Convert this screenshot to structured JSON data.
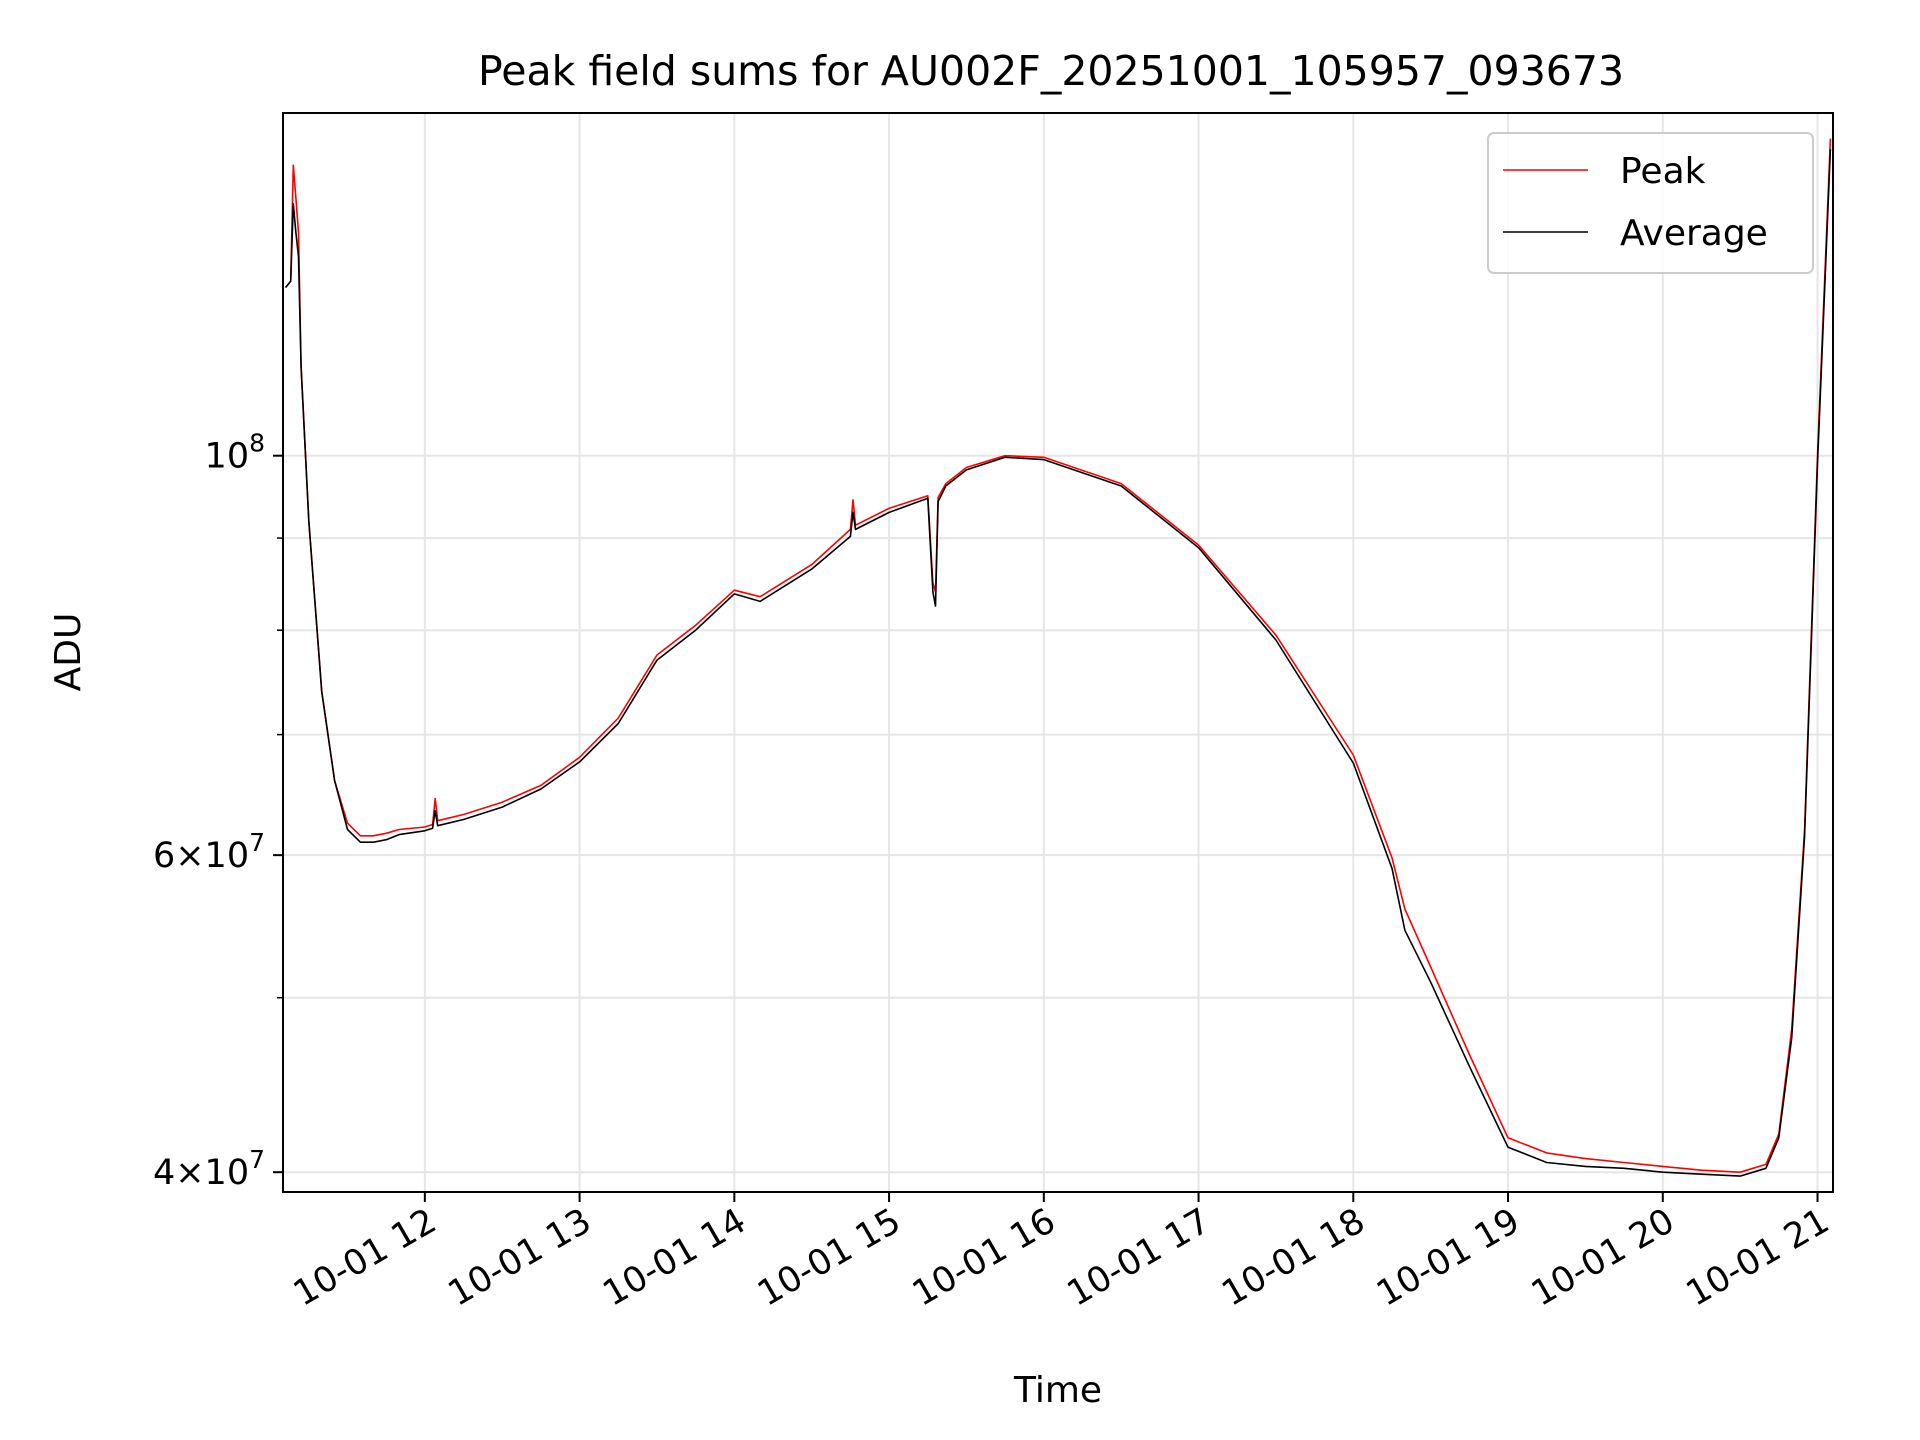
{
  "chart_data": {
    "type": "line",
    "title": "Peak field sums for AU002F_20251001_105957_093673",
    "xlabel": "Time",
    "ylabel": "ADU",
    "y_scale": "log",
    "xlim": [
      "2025-10-01T11:05",
      "2025-10-01T21:06"
    ],
    "ylim": [
      39000000,
      155000000
    ],
    "grid": true,
    "legend_position": "top-right",
    "x_ticks": [
      "10-01 12",
      "10-01 13",
      "10-01 14",
      "10-01 15",
      "10-01 16",
      "10-01 17",
      "10-01 18",
      "10-01 19",
      "10-01 20",
      "10-01 21"
    ],
    "x_tick_times": [
      "2025-10-01T12:00",
      "2025-10-01T13:00",
      "2025-10-01T14:00",
      "2025-10-01T15:00",
      "2025-10-01T16:00",
      "2025-10-01T17:00",
      "2025-10-01T18:00",
      "2025-10-01T19:00",
      "2025-10-01T20:00",
      "2025-10-01T21:00"
    ],
    "y_ticks": [
      {
        "value": 100000000,
        "base": "10",
        "exp": "8"
      },
      {
        "value": 60000000,
        "base": "6×10",
        "exp": "7"
      },
      {
        "value": 40000000,
        "base": "4×10",
        "exp": "7"
      }
    ],
    "y_minor_gridlines": [
      50000000,
      70000000,
      80000000,
      90000000
    ],
    "series": [
      {
        "name": "Peak",
        "color": "#ff0000",
        "x": [
          "2025-10-01T11:06",
          "2025-10-01T11:08",
          "2025-10-01T11:09",
          "2025-10-01T11:10",
          "2025-10-01T11:11",
          "2025-10-01T11:12",
          "2025-10-01T11:15",
          "2025-10-01T11:20",
          "2025-10-01T11:25",
          "2025-10-01T11:30",
          "2025-10-01T11:35",
          "2025-10-01T11:40",
          "2025-10-01T11:45",
          "2025-10-01T11:50",
          "2025-10-01T12:00",
          "2025-10-01T12:03",
          "2025-10-01T12:04",
          "2025-10-01T12:05",
          "2025-10-01T12:15",
          "2025-10-01T12:30",
          "2025-10-01T12:45",
          "2025-10-01T13:00",
          "2025-10-01T13:15",
          "2025-10-01T13:30",
          "2025-10-01T13:45",
          "2025-10-01T14:00",
          "2025-10-01T14:10",
          "2025-10-01T14:30",
          "2025-10-01T14:45",
          "2025-10-01T14:46",
          "2025-10-01T14:47",
          "2025-10-01T15:00",
          "2025-10-01T15:15",
          "2025-10-01T15:17",
          "2025-10-01T15:18",
          "2025-10-01T15:19",
          "2025-10-01T15:22",
          "2025-10-01T15:30",
          "2025-10-01T15:45",
          "2025-10-01T16:00",
          "2025-10-01T16:30",
          "2025-10-01T17:00",
          "2025-10-01T17:30",
          "2025-10-01T18:00",
          "2025-10-01T18:15",
          "2025-10-01T18:20",
          "2025-10-01T18:30",
          "2025-10-01T18:45",
          "2025-10-01T19:00",
          "2025-10-01T19:15",
          "2025-10-01T19:30",
          "2025-10-01T19:45",
          "2025-10-01T20:00",
          "2025-10-01T20:15",
          "2025-10-01T20:30",
          "2025-10-01T20:40",
          "2025-10-01T20:45",
          "2025-10-01T20:50",
          "2025-10-01T20:55",
          "2025-10-01T21:00",
          "2025-10-01T21:05"
        ],
        "y": [
          124000000,
          125000000,
          145000000,
          139000000,
          133000000,
          112000000,
          92000000,
          74000000,
          66000000,
          62500000,
          61500000,
          61500000,
          61700000,
          62000000,
          62200000,
          62400000,
          64500000,
          62700000,
          63200000,
          64200000,
          65600000,
          68000000,
          71500000,
          77500000,
          80500000,
          84200000,
          83500000,
          87000000,
          91000000,
          94500000,
          91500000,
          93500000,
          95000000,
          85000000,
          84000000,
          94800000,
          96500000,
          98500000,
          100000000,
          99800000,
          96500000,
          89200000,
          79500000,
          68200000,
          59800000,
          56000000,
          52000000,
          46500000,
          41800000,
          41000000,
          40700000,
          40500000,
          40300000,
          40100000,
          40000000,
          40400000,
          42000000,
          48000000,
          62000000,
          100000000,
          150000000
        ]
      },
      {
        "name": "Average",
        "color": "#000000",
        "x": [
          "2025-10-01T11:06",
          "2025-10-01T11:08",
          "2025-10-01T11:09",
          "2025-10-01T11:10",
          "2025-10-01T11:11",
          "2025-10-01T11:12",
          "2025-10-01T11:15",
          "2025-10-01T11:20",
          "2025-10-01T11:25",
          "2025-10-01T11:30",
          "2025-10-01T11:35",
          "2025-10-01T11:40",
          "2025-10-01T11:45",
          "2025-10-01T11:50",
          "2025-10-01T12:00",
          "2025-10-01T12:03",
          "2025-10-01T12:04",
          "2025-10-01T12:05",
          "2025-10-01T12:15",
          "2025-10-01T12:30",
          "2025-10-01T12:45",
          "2025-10-01T13:00",
          "2025-10-01T13:15",
          "2025-10-01T13:30",
          "2025-10-01T13:45",
          "2025-10-01T14:00",
          "2025-10-01T14:10",
          "2025-10-01T14:30",
          "2025-10-01T14:45",
          "2025-10-01T14:46",
          "2025-10-01T14:47",
          "2025-10-01T15:00",
          "2025-10-01T15:15",
          "2025-10-01T15:17",
          "2025-10-01T15:18",
          "2025-10-01T15:19",
          "2025-10-01T15:22",
          "2025-10-01T15:30",
          "2025-10-01T15:45",
          "2025-10-01T16:00",
          "2025-10-01T16:30",
          "2025-10-01T17:00",
          "2025-10-01T17:30",
          "2025-10-01T18:00",
          "2025-10-01T18:15",
          "2025-10-01T18:20",
          "2025-10-01T18:30",
          "2025-10-01T18:45",
          "2025-10-01T19:00",
          "2025-10-01T19:15",
          "2025-10-01T19:30",
          "2025-10-01T19:45",
          "2025-10-01T20:00",
          "2025-10-01T20:15",
          "2025-10-01T20:30",
          "2025-10-01T20:40",
          "2025-10-01T20:45",
          "2025-10-01T20:50",
          "2025-10-01T20:55",
          "2025-10-01T21:00",
          "2025-10-01T21:05"
        ],
        "y": [
          124000000,
          125000000,
          138000000,
          133000000,
          129000000,
          112000000,
          92000000,
          74000000,
          66000000,
          62000000,
          61000000,
          61000000,
          61200000,
          61600000,
          61900000,
          62100000,
          63500000,
          62300000,
          62800000,
          63800000,
          65300000,
          67600000,
          71000000,
          77000000,
          80000000,
          83800000,
          83000000,
          86500000,
          90200000,
          93000000,
          91000000,
          93000000,
          94700000,
          84000000,
          82500000,
          94300000,
          96200000,
          98200000,
          99800000,
          99500000,
          96200000,
          88900000,
          79000000,
          67500000,
          59000000,
          54500000,
          51000000,
          45800000,
          41300000,
          40500000,
          40300000,
          40200000,
          40000000,
          39900000,
          39800000,
          40200000,
          41800000,
          47500000,
          61500000,
          99000000,
          148000000
        ]
      }
    ]
  }
}
